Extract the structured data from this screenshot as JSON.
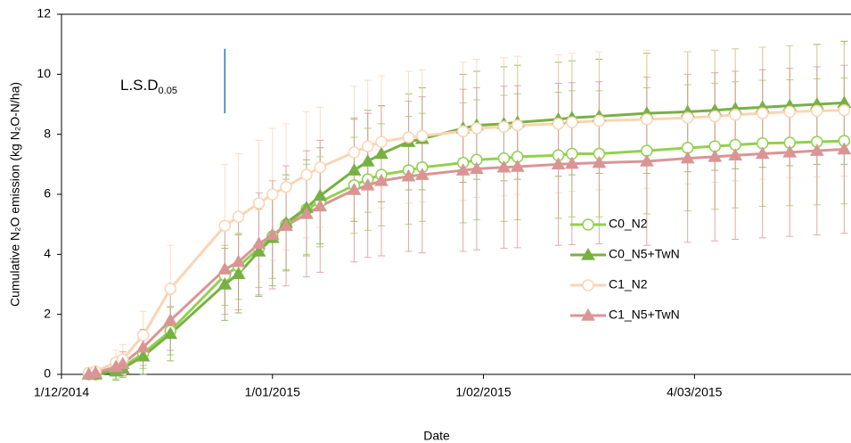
{
  "chart_data": {
    "type": "line",
    "y_label": "Cumulative N₂O emission (kg N₂O-N/ha)",
    "x_label": "Date",
    "x": [
      "2014-12-05",
      "2014-12-06",
      "2014-12-09",
      "2014-12-10",
      "2014-12-13",
      "2014-12-17",
      "2014-12-25",
      "2014-12-27",
      "2014-12-30",
      "2015-01-01",
      "2015-01-03",
      "2015-01-06",
      "2015-01-08",
      "2015-01-13",
      "2015-01-15",
      "2015-01-17",
      "2015-01-21",
      "2015-01-23",
      "2015-01-29",
      "2015-01-31",
      "2015-02-04",
      "2015-02-06",
      "2015-02-12",
      "2015-02-14",
      "2015-02-18",
      "2015-02-25",
      "2015-03-03",
      "2015-03-07",
      "2015-03-10",
      "2015-03-14",
      "2015-03-18",
      "2015-03-22",
      "2015-03-26"
    ],
    "xlim": [
      "2014-12-01",
      "2015-03-27"
    ],
    "xticks": [
      {
        "value": "2014-12-01",
        "label": "1/12/2014"
      },
      {
        "value": "2015-01-01",
        "label": "1/01/2015"
      },
      {
        "value": "2015-02-01",
        "label": "1/02/2015"
      },
      {
        "value": "2015-03-04",
        "label": "4/03/2015"
      }
    ],
    "ylim": [
      0,
      12
    ],
    "yticks": [
      0,
      2,
      4,
      6,
      8,
      10,
      12
    ],
    "series": [
      {
        "name": "C0_N2",
        "color": "#92d050",
        "marker": "circle",
        "values": [
          0,
          0,
          0.15,
          0.25,
          0.7,
          1.45,
          3.3,
          3.6,
          4.2,
          4.6,
          5.0,
          5.5,
          5.75,
          6.3,
          6.5,
          6.65,
          6.8,
          6.9,
          7.05,
          7.15,
          7.2,
          7.25,
          7.3,
          7.35,
          7.35,
          7.45,
          7.55,
          7.6,
          7.65,
          7.7,
          7.72,
          7.75,
          7.78
        ],
        "errors": [
          0.05,
          0.05,
          0.3,
          0.3,
          0.5,
          0.8,
          1.0,
          1.1,
          1.3,
          1.4,
          1.5,
          1.5,
          1.5,
          1.6,
          1.7,
          1.7,
          1.8,
          1.8,
          2.0,
          2.0,
          2.1,
          2.1,
          2.1,
          2.1,
          2.1,
          2.1,
          2.1,
          2.1,
          2.1,
          2.1,
          2.1,
          2.1,
          2.1
        ]
      },
      {
        "name": "C0_N5+TwN",
        "color": "#77b143",
        "marker": "triangle",
        "values": [
          0,
          0,
          0.1,
          0.2,
          0.6,
          1.35,
          3.0,
          3.35,
          4.1,
          4.55,
          5.05,
          5.55,
          5.95,
          6.8,
          7.1,
          7.35,
          7.75,
          7.85,
          8.2,
          8.3,
          8.35,
          8.4,
          8.5,
          8.55,
          8.6,
          8.7,
          8.75,
          8.8,
          8.85,
          8.9,
          8.95,
          9.0,
          9.05
        ],
        "errors": [
          0.05,
          0.05,
          0.3,
          0.3,
          0.6,
          0.9,
          1.2,
          1.3,
          1.5,
          1.6,
          1.6,
          1.6,
          1.6,
          1.7,
          1.7,
          1.6,
          1.6,
          1.7,
          1.8,
          1.8,
          1.9,
          1.9,
          1.9,
          1.9,
          1.9,
          2.0,
          2.0,
          2.0,
          2.0,
          2.0,
          2.0,
          2.0,
          2.05
        ]
      },
      {
        "name": "C1_N2",
        "color": "#fbd4b4",
        "marker": "circle",
        "values": [
          0.05,
          0.1,
          0.4,
          0.5,
          1.3,
          2.85,
          4.95,
          5.25,
          5.7,
          6.0,
          6.25,
          6.65,
          6.9,
          7.4,
          7.6,
          7.75,
          7.9,
          7.95,
          8.1,
          8.2,
          8.25,
          8.3,
          8.35,
          8.4,
          8.45,
          8.5,
          8.55,
          8.6,
          8.65,
          8.7,
          8.75,
          8.78,
          8.8
        ],
        "errors": [
          0.1,
          0.15,
          0.4,
          0.5,
          0.8,
          1.45,
          2.05,
          2.1,
          2.1,
          2.2,
          2.1,
          2.1,
          2.0,
          2.2,
          2.2,
          2.2,
          2.2,
          2.2,
          2.3,
          2.3,
          2.3,
          2.3,
          2.3,
          2.3,
          2.3,
          2.3,
          2.2,
          2.2,
          2.2,
          2.2,
          2.2,
          2.2,
          2.2
        ]
      },
      {
        "name": "C1_N5+TwN",
        "color": "#d99594",
        "marker": "triangle",
        "values": [
          0,
          0.05,
          0.25,
          0.35,
          0.9,
          1.8,
          3.5,
          3.75,
          4.35,
          4.65,
          4.95,
          5.35,
          5.6,
          6.15,
          6.3,
          6.45,
          6.6,
          6.65,
          6.8,
          6.85,
          6.9,
          6.92,
          7.0,
          7.02,
          7.05,
          7.1,
          7.2,
          7.25,
          7.3,
          7.35,
          7.4,
          7.45,
          7.5
        ],
        "errors": [
          0.05,
          0.1,
          0.3,
          0.4,
          0.6,
          1.0,
          1.5,
          1.6,
          1.7,
          1.8,
          2.0,
          2.1,
          2.2,
          2.4,
          2.4,
          2.5,
          2.5,
          2.6,
          2.7,
          2.7,
          2.7,
          2.7,
          2.7,
          2.7,
          2.7,
          2.8,
          2.8,
          2.8,
          2.8,
          2.8,
          2.8,
          2.8,
          2.8
        ]
      }
    ],
    "lsd": {
      "text": "L.S.D",
      "subscript": "0.05",
      "x": "2014-12-25",
      "range": [
        8.7,
        10.85
      ],
      "color": "#2e75b6"
    },
    "legend": "right"
  }
}
